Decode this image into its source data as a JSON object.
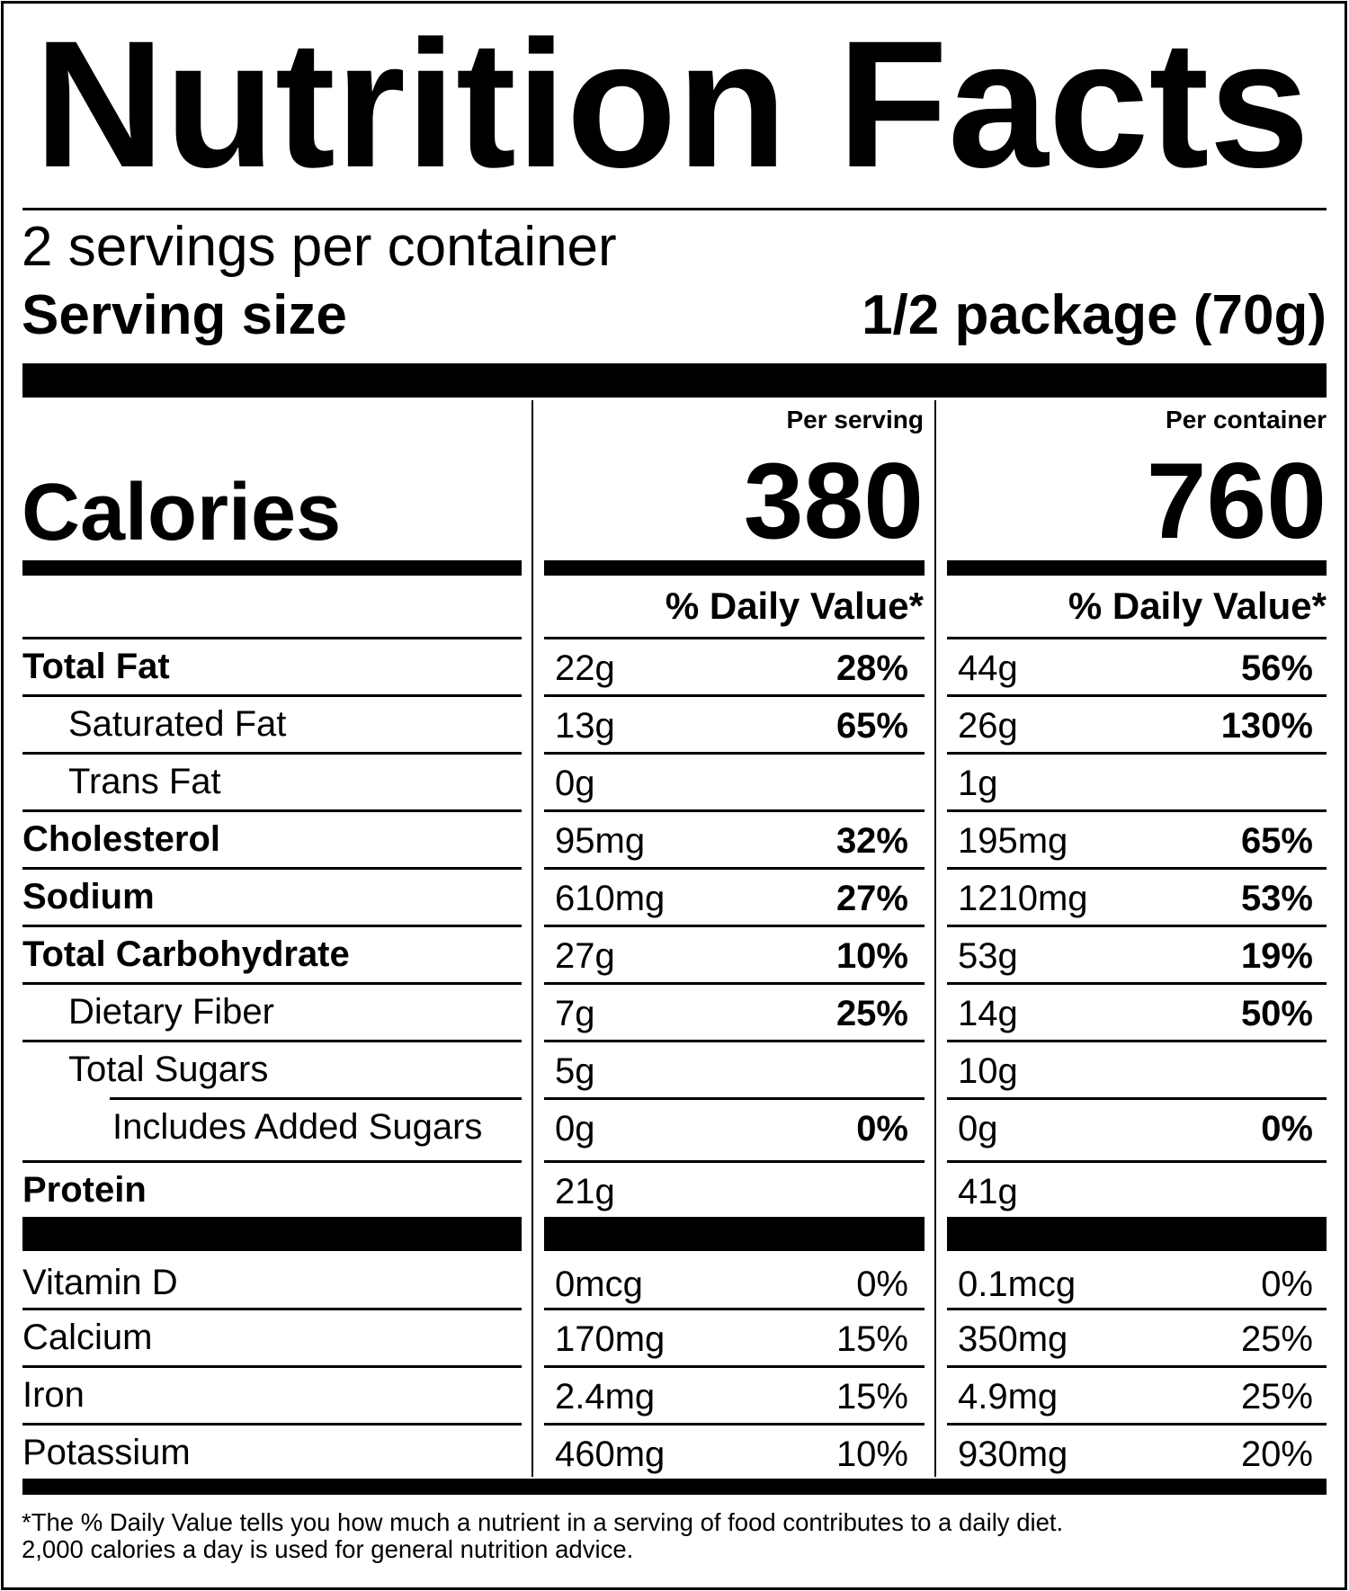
{
  "header": {
    "title": "Nutrition Facts",
    "servings_per_container": "2 servings per container",
    "serving_size_label": "Serving size",
    "serving_size_value": "1/2 package (70g)"
  },
  "calories": {
    "label": "Calories",
    "per_serving_heading": "Per serving",
    "per_container_heading": "Per container",
    "per_serving_value": "380",
    "per_container_value": "760",
    "daily_value_heading": "% Daily Value*"
  },
  "nutrients": [
    {
      "name": "Total Fat",
      "bold": true,
      "indent": 0,
      "serving_amount": "22g",
      "serving_dv": "28%",
      "container_amount": "44g",
      "container_dv": "56%",
      "dv_bold": true
    },
    {
      "name": "Saturated Fat",
      "bold": false,
      "indent": 1,
      "serving_amount": "13g",
      "serving_dv": "65%",
      "container_amount": "26g",
      "container_dv": "130%",
      "dv_bold": true
    },
    {
      "name": "Trans Fat",
      "bold": false,
      "indent": 1,
      "serving_amount": "0g",
      "serving_dv": "",
      "container_amount": "1g",
      "container_dv": "",
      "dv_bold": true
    },
    {
      "name": "Cholesterol",
      "bold": true,
      "indent": 0,
      "serving_amount": "95mg",
      "serving_dv": "32%",
      "container_amount": "195mg",
      "container_dv": "65%",
      "dv_bold": true
    },
    {
      "name": "Sodium",
      "bold": true,
      "indent": 0,
      "serving_amount": "610mg",
      "serving_dv": "27%",
      "container_amount": "1210mg",
      "container_dv": "53%",
      "dv_bold": true
    },
    {
      "name": "Total Carbohydrate",
      "bold": true,
      "indent": 0,
      "serving_amount": "27g",
      "serving_dv": "10%",
      "container_amount": "53g",
      "container_dv": "19%",
      "dv_bold": true
    },
    {
      "name": "Dietary Fiber",
      "bold": false,
      "indent": 1,
      "serving_amount": "7g",
      "serving_dv": "25%",
      "container_amount": "14g",
      "container_dv": "50%",
      "dv_bold": true
    },
    {
      "name": "Total Sugars",
      "bold": false,
      "indent": 1,
      "serving_amount": "5g",
      "serving_dv": "",
      "container_amount": "10g",
      "container_dv": "",
      "dv_bold": true
    },
    {
      "name": "Includes Added Sugars",
      "bold": false,
      "indent": 2,
      "serving_amount": "0g",
      "serving_dv": "0%",
      "container_amount": "0g",
      "container_dv": "0%",
      "dv_bold": true
    },
    {
      "name": "Protein",
      "bold": true,
      "indent": 0,
      "serving_amount": "21g",
      "serving_dv": "",
      "container_amount": "41g",
      "container_dv": "",
      "dv_bold": true
    }
  ],
  "vitamins": [
    {
      "name": "Vitamin D",
      "serving_amount": "0mcg",
      "serving_dv": "0%",
      "container_amount": "0.1mcg",
      "container_dv": "0%"
    },
    {
      "name": "Calcium",
      "serving_amount": "170mg",
      "serving_dv": "15%",
      "container_amount": "350mg",
      "container_dv": "25%"
    },
    {
      "name": "Iron",
      "serving_amount": "2.4mg",
      "serving_dv": "15%",
      "container_amount": "4.9mg",
      "container_dv": "25%"
    },
    {
      "name": "Potassium",
      "serving_amount": "460mg",
      "serving_dv": "10%",
      "container_amount": "930mg",
      "container_dv": "20%"
    }
  ],
  "footnote": {
    "line1": "*The % Daily Value tells you how much a nutrient in a serving of food contributes to a daily diet.",
    "line2": "2,000 calories a day is used for general nutrition advice."
  },
  "colors": {
    "ink": "#000000",
    "background": "#ffffff"
  }
}
